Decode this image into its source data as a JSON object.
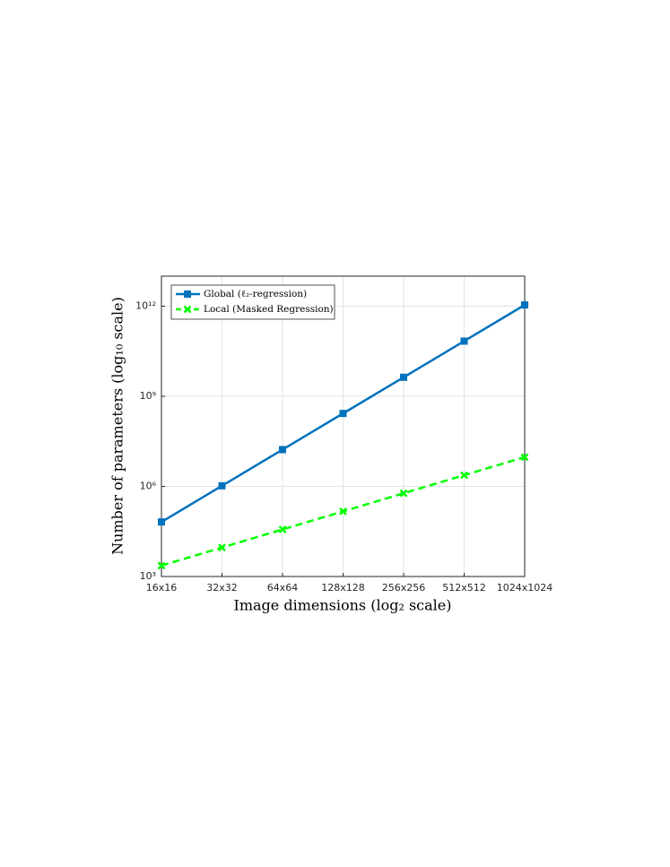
{
  "chart_data": {
    "type": "line",
    "xlabel": "Image dimensions (log₂ scale)",
    "ylabel": "Number of parameters (log₁₀ scale)",
    "categories": [
      "16x16",
      "32x32",
      "64x64",
      "128x128",
      "256x256",
      "512x512",
      "1024x1024"
    ],
    "series": [
      {
        "name": "Global (ℓ₂-regression)",
        "color": "#0072bd",
        "values": [
          65536,
          1048576,
          16777216,
          268435456,
          4294967296,
          68719476736,
          1099511627776
        ]
      },
      {
        "name": "Local (Masked Regression)",
        "color": "#00ff00",
        "values": [
          2304,
          9216,
          36864,
          147456,
          589824,
          2359296,
          9437184
        ]
      }
    ],
    "ylim": [
      1000,
      10000000000000
    ],
    "yticks": [
      {
        "value": 1000,
        "label": "10³"
      },
      {
        "value": 1000000,
        "label": "10⁶"
      },
      {
        "value": 1000000000,
        "label": "10⁹"
      },
      {
        "value": 1000000000000,
        "label": "10¹²"
      }
    ],
    "ylog": true,
    "grid": true,
    "legend": "upper left"
  }
}
